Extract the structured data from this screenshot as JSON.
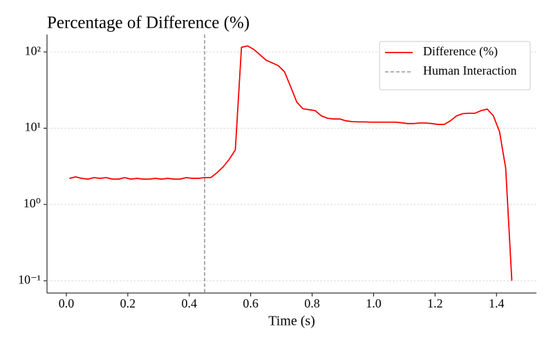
{
  "chart_data": {
    "type": "line",
    "title": "Percentage of Difference (%)",
    "x_label": "Time (s)",
    "x": [
      0.01,
      0.03,
      0.05,
      0.07,
      0.09,
      0.11,
      0.13,
      0.15,
      0.17,
      0.19,
      0.21,
      0.23,
      0.25,
      0.27,
      0.29,
      0.31,
      0.33,
      0.35,
      0.37,
      0.39,
      0.41,
      0.43,
      0.45,
      0.47,
      0.49,
      0.51,
      0.53,
      0.55,
      0.57,
      0.59,
      0.61,
      0.63,
      0.65,
      0.67,
      0.69,
      0.71,
      0.73,
      0.75,
      0.77,
      0.79,
      0.81,
      0.83,
      0.85,
      0.87,
      0.89,
      0.91,
      0.93,
      0.95,
      0.97,
      0.99,
      1.01,
      1.03,
      1.05,
      1.07,
      1.09,
      1.11,
      1.13,
      1.15,
      1.17,
      1.19,
      1.21,
      1.23,
      1.25,
      1.27,
      1.29,
      1.31,
      1.33,
      1.35,
      1.37,
      1.39,
      1.41,
      1.43,
      1.45
    ],
    "series": [
      {
        "name": "Difference (%)",
        "color": "#ff0000",
        "values": [
          2.2,
          2.3,
          2.2,
          2.15,
          2.25,
          2.2,
          2.25,
          2.15,
          2.15,
          2.25,
          2.15,
          2.2,
          2.15,
          2.15,
          2.2,
          2.15,
          2.2,
          2.15,
          2.15,
          2.25,
          2.2,
          2.2,
          2.25,
          2.25,
          2.6,
          3.1,
          3.9,
          5.2,
          115,
          120,
          108,
          92,
          78,
          72,
          66,
          55,
          35,
          22,
          18,
          17.5,
          17,
          14.5,
          13.5,
          13.2,
          13.2,
          12.5,
          12.2,
          12.1,
          12.1,
          12.0,
          12.0,
          12.0,
          12.0,
          12.0,
          11.8,
          11.5,
          11.5,
          11.7,
          11.7,
          11.5,
          11.2,
          11.2,
          12.5,
          14.5,
          15.5,
          15.7,
          15.7,
          17,
          17.8,
          14.5,
          9,
          3,
          0.1
        ]
      }
    ],
    "reference_lines": [
      {
        "name": "Human Interaction",
        "x": 0.45,
        "color": "#808080"
      }
    ],
    "xlim": [
      -0.063,
      1.53
    ],
    "xticks": [
      {
        "value": 0,
        "label": "0.0"
      },
      0.2,
      0.4,
      0.6,
      0.8,
      {
        "value": 1,
        "label": "1.0"
      },
      1.2,
      1.4
    ],
    "ylim": [
      0.069,
      169
    ],
    "yticks": [
      {
        "value": 0.1,
        "label": "10⁻¹"
      },
      {
        "value": 1,
        "label": "10⁰"
      },
      {
        "value": 10,
        "label": "10¹"
      },
      {
        "value": 100,
        "label": "10²"
      }
    ],
    "y_scale": "log",
    "grid": true,
    "legend": "upper right"
  }
}
